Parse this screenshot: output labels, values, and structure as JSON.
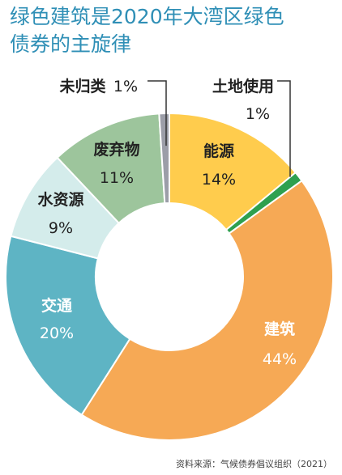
{
  "title_line1": "绿色建筑是2020年大湾区绿色",
  "title_line2": "债券的主旋律",
  "source": "资料来源：气候债券倡议组织（2021）",
  "chart_data": {
    "type": "pie",
    "style": "donut",
    "categories": [
      "能源",
      "土地使用",
      "建筑",
      "交通",
      "水资源",
      "废弃物",
      "未归类"
    ],
    "values": [
      14,
      1,
      44,
      20,
      9,
      11,
      1
    ],
    "value_labels": [
      "14%",
      "1%",
      "44%",
      "20%",
      "9%",
      "11%",
      "1%"
    ],
    "colors": [
      "#ffcc4d",
      "#2ea04f",
      "#f6a955",
      "#5eb4c4",
      "#d4eceb",
      "#9dc59c",
      "#9c9ea8"
    ],
    "label_colors": [
      "#222222",
      "#222222",
      "#ffffff",
      "#ffffff",
      "#222222",
      "#222222",
      "#222222"
    ],
    "title": "绿色建筑是2020年大湾区绿色债券的主旋律"
  }
}
